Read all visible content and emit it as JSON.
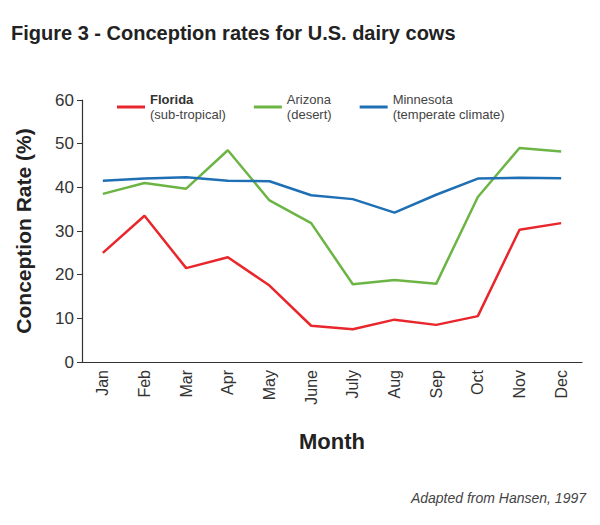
{
  "chart_data": {
    "type": "line",
    "title": "Figure 3 - Conception rates for U.S. dairy cows",
    "categories": [
      "Jan",
      "Feb",
      "Mar",
      "Apr",
      "May",
      "June",
      "July",
      "Aug",
      "Sep",
      "Oct",
      "Nov",
      "Dec"
    ],
    "series": [
      {
        "name": "Florida\n(sub-tropical)",
        "color": "#e8262c",
        "values": [
          25,
          33.5,
          21.5,
          24,
          17.5,
          8.3,
          7.5,
          9.7,
          8.5,
          10.5,
          30.3,
          31.8
        ]
      },
      {
        "name": "Arizona\n(desert)",
        "color": "#6cb545",
        "values": [
          38.5,
          41,
          39.7,
          48.5,
          37,
          31.8,
          17.8,
          18.8,
          17.9,
          37.8,
          49,
          48.2
        ]
      },
      {
        "name": "Minnesota\n(temperate climate)",
        "color": "#1f6fb5",
        "values": [
          41.5,
          42,
          42.3,
          41.5,
          41.4,
          38.2,
          37.3,
          34.2,
          38.3,
          42,
          42.2,
          42.1
        ]
      }
    ],
    "xlabel": "Month",
    "ylabel": "Conception Rate (%)",
    "ylim": [
      0,
      60
    ],
    "yticks": [
      0,
      10,
      20,
      30,
      40,
      50,
      60
    ],
    "annotation": "Adapted from Hansen, 1997",
    "legend": "top",
    "grid": false
  }
}
